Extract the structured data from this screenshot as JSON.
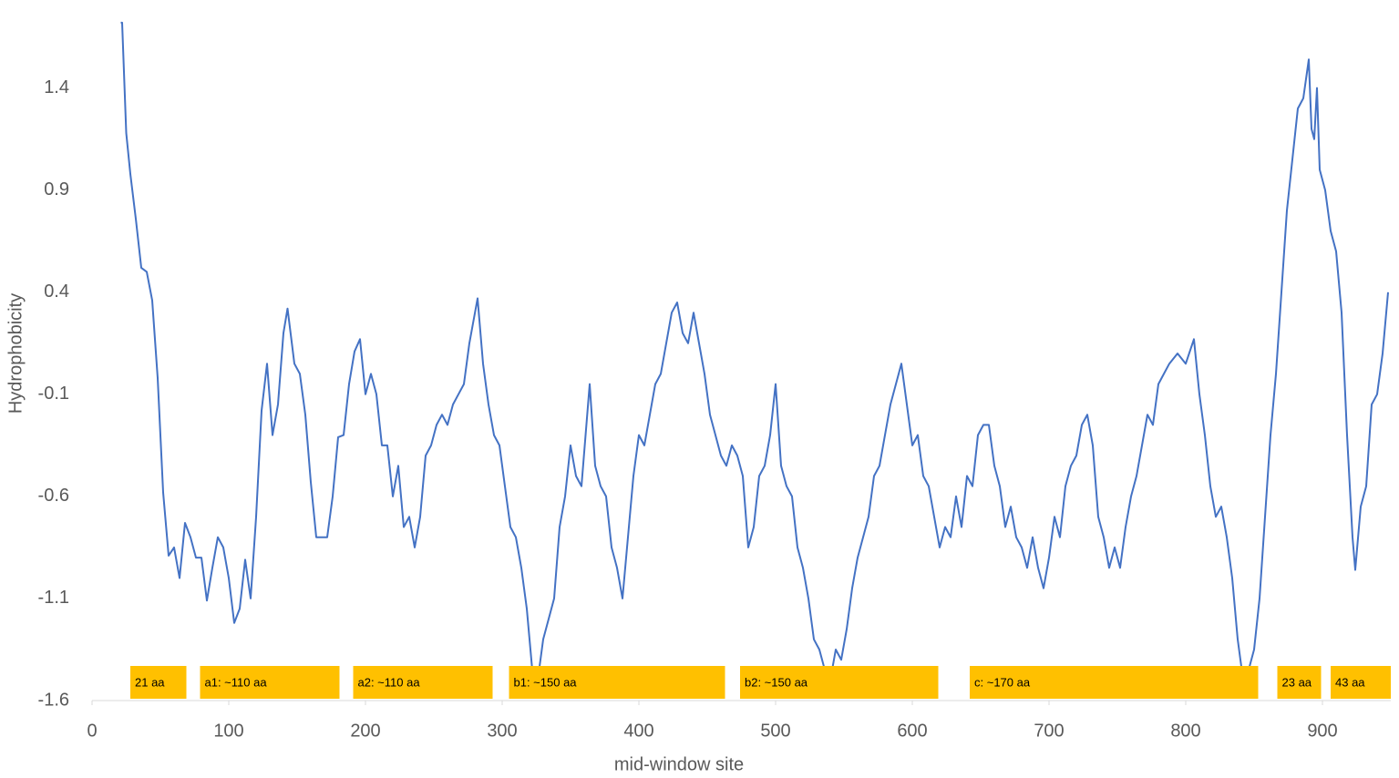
{
  "chart_data": {
    "type": "line",
    "xlabel": "mid-window site",
    "ylabel": "Hydrophobicity",
    "xlim": [
      0,
      950
    ],
    "xticks": [
      0,
      100,
      200,
      300,
      400,
      500,
      600,
      700,
      800,
      900
    ],
    "ylim": [
      -1.6,
      1.8
    ],
    "yticks": [
      -1.6,
      -1.1,
      -0.6,
      -0.1,
      0.4,
      0.9,
      1.4
    ],
    "grid": false,
    "x": [
      21,
      22,
      25,
      28,
      32,
      36,
      40,
      44,
      48,
      52,
      56,
      60,
      64,
      68,
      72,
      76,
      80,
      84,
      88,
      92,
      96,
      100,
      104,
      108,
      112,
      116,
      120,
      124,
      128,
      132,
      136,
      140,
      143,
      148,
      152,
      156,
      160,
      164,
      168,
      172,
      176,
      180,
      184,
      188,
      192,
      196,
      200,
      204,
      208,
      212,
      216,
      220,
      224,
      228,
      232,
      236,
      240,
      244,
      248,
      252,
      256,
      260,
      264,
      268,
      272,
      276,
      282,
      286,
      290,
      294,
      298,
      302,
      306,
      310,
      314,
      318,
      322,
      326,
      330,
      334,
      338,
      342,
      346,
      350,
      354,
      358,
      364,
      368,
      372,
      376,
      380,
      384,
      388,
      392,
      396,
      400,
      404,
      408,
      412,
      416,
      420,
      424,
      428,
      432,
      436,
      440,
      444,
      448,
      452,
      456,
      460,
      464,
      468,
      472,
      476,
      480,
      484,
      488,
      492,
      496,
      500,
      504,
      508,
      512,
      516,
      520,
      524,
      528,
      532,
      536,
      540,
      544,
      548,
      552,
      556,
      560,
      564,
      568,
      572,
      576,
      580,
      584,
      588,
      592,
      596,
      600,
      604,
      608,
      612,
      616,
      620,
      624,
      628,
      632,
      636,
      640,
      644,
      648,
      652,
      656,
      660,
      664,
      668,
      672,
      676,
      680,
      684,
      688,
      692,
      696,
      700,
      704,
      708,
      712,
      716,
      720,
      724,
      728,
      732,
      736,
      740,
      744,
      748,
      752,
      756,
      760,
      764,
      768,
      772,
      776,
      780,
      784,
      788,
      794,
      800,
      806,
      810,
      814,
      818,
      822,
      826,
      830,
      834,
      838,
      842,
      846,
      850,
      854,
      858,
      862,
      866,
      870,
      874,
      878,
      882,
      886,
      890,
      892,
      894,
      896,
      898,
      902,
      906,
      910,
      914,
      918,
      922,
      924,
      928,
      932,
      936,
      940,
      944,
      948
    ],
    "series": [
      {
        "name": "Hydrophobicity",
        "color": "#4472c4",
        "values": [
          1.72,
          1.72,
          1.18,
          0.98,
          0.76,
          0.52,
          0.5,
          0.36,
          -0.02,
          -0.58,
          -0.89,
          -0.85,
          -1.0,
          -0.73,
          -0.8,
          -0.9,
          -0.9,
          -1.11,
          -0.95,
          -0.8,
          -0.85,
          -1.0,
          -1.22,
          -1.15,
          -0.91,
          -1.1,
          -0.7,
          -0.18,
          0.05,
          -0.3,
          -0.15,
          0.2,
          0.32,
          0.05,
          0.0,
          -0.2,
          -0.53,
          -0.8,
          -0.8,
          -0.8,
          -0.6,
          -0.31,
          -0.3,
          -0.05,
          0.11,
          0.17,
          -0.1,
          0.0,
          -0.1,
          -0.35,
          -0.35,
          -0.6,
          -0.45,
          -0.75,
          -0.7,
          -0.85,
          -0.7,
          -0.4,
          -0.35,
          -0.25,
          -0.2,
          -0.25,
          -0.15,
          -0.1,
          -0.05,
          0.15,
          0.37,
          0.05,
          -0.15,
          -0.3,
          -0.35,
          -0.55,
          -0.75,
          -0.8,
          -0.95,
          -1.15,
          -1.45,
          -1.5,
          -1.3,
          -1.2,
          -1.1,
          -0.75,
          -0.6,
          -0.35,
          -0.5,
          -0.55,
          -0.05,
          -0.45,
          -0.55,
          -0.6,
          -0.85,
          -0.95,
          -1.1,
          -0.8,
          -0.5,
          -0.3,
          -0.35,
          -0.2,
          -0.05,
          0.0,
          0.15,
          0.3,
          0.35,
          0.2,
          0.15,
          0.3,
          0.15,
          0.0,
          -0.2,
          -0.3,
          -0.4,
          -0.45,
          -0.35,
          -0.4,
          -0.5,
          -0.85,
          -0.75,
          -0.5,
          -0.45,
          -0.3,
          -0.05,
          -0.45,
          -0.55,
          -0.6,
          -0.85,
          -0.95,
          -1.1,
          -1.3,
          -1.35,
          -1.45,
          -1.5,
          -1.35,
          -1.4,
          -1.25,
          -1.05,
          -0.9,
          -0.8,
          -0.7,
          -0.5,
          -0.45,
          -0.3,
          -0.15,
          -0.05,
          0.05,
          -0.15,
          -0.35,
          -0.3,
          -0.5,
          -0.55,
          -0.7,
          -0.85,
          -0.75,
          -0.8,
          -0.6,
          -0.75,
          -0.5,
          -0.55,
          -0.3,
          -0.25,
          -0.25,
          -0.45,
          -0.55,
          -0.75,
          -0.65,
          -0.8,
          -0.85,
          -0.95,
          -0.8,
          -0.95,
          -1.05,
          -0.9,
          -0.7,
          -0.8,
          -0.55,
          -0.45,
          -0.4,
          -0.25,
          -0.2,
          -0.35,
          -0.7,
          -0.8,
          -0.95,
          -0.85,
          -0.95,
          -0.75,
          -0.6,
          -0.5,
          -0.35,
          -0.2,
          -0.25,
          -0.05,
          0.0,
          0.05,
          0.1,
          0.05,
          0.17,
          -0.1,
          -0.3,
          -0.55,
          -0.7,
          -0.65,
          -0.8,
          -1.0,
          -1.3,
          -1.5,
          -1.45,
          -1.35,
          -1.1,
          -0.7,
          -0.3,
          0.0,
          0.4,
          0.8,
          1.05,
          1.3,
          1.35,
          1.54,
          1.2,
          1.15,
          1.4,
          1.0,
          0.9,
          0.7,
          0.6,
          0.3,
          -0.3,
          -0.8,
          -0.96,
          -0.65,
          -0.55,
          -0.15,
          -0.1,
          0.1,
          0.4
        ]
      }
    ],
    "annotation_color": "#ffc000",
    "annotations": [
      {
        "text": "21 aa",
        "start": 28,
        "end": 69
      },
      {
        "text": "a1: ~110 aa",
        "start": 79,
        "end": 181
      },
      {
        "text": "a2: ~110 aa",
        "start": 191,
        "end": 293
      },
      {
        "text": "b1: ~150  aa",
        "start": 305,
        "end": 463
      },
      {
        "text": "b2: ~150  aa",
        "start": 474,
        "end": 619
      },
      {
        "text": "c: ~170  aa",
        "start": 642,
        "end": 853
      },
      {
        "text": "23 aa",
        "start": 867,
        "end": 899
      },
      {
        "text": "43 aa",
        "start": 906,
        "end": 950
      }
    ]
  }
}
